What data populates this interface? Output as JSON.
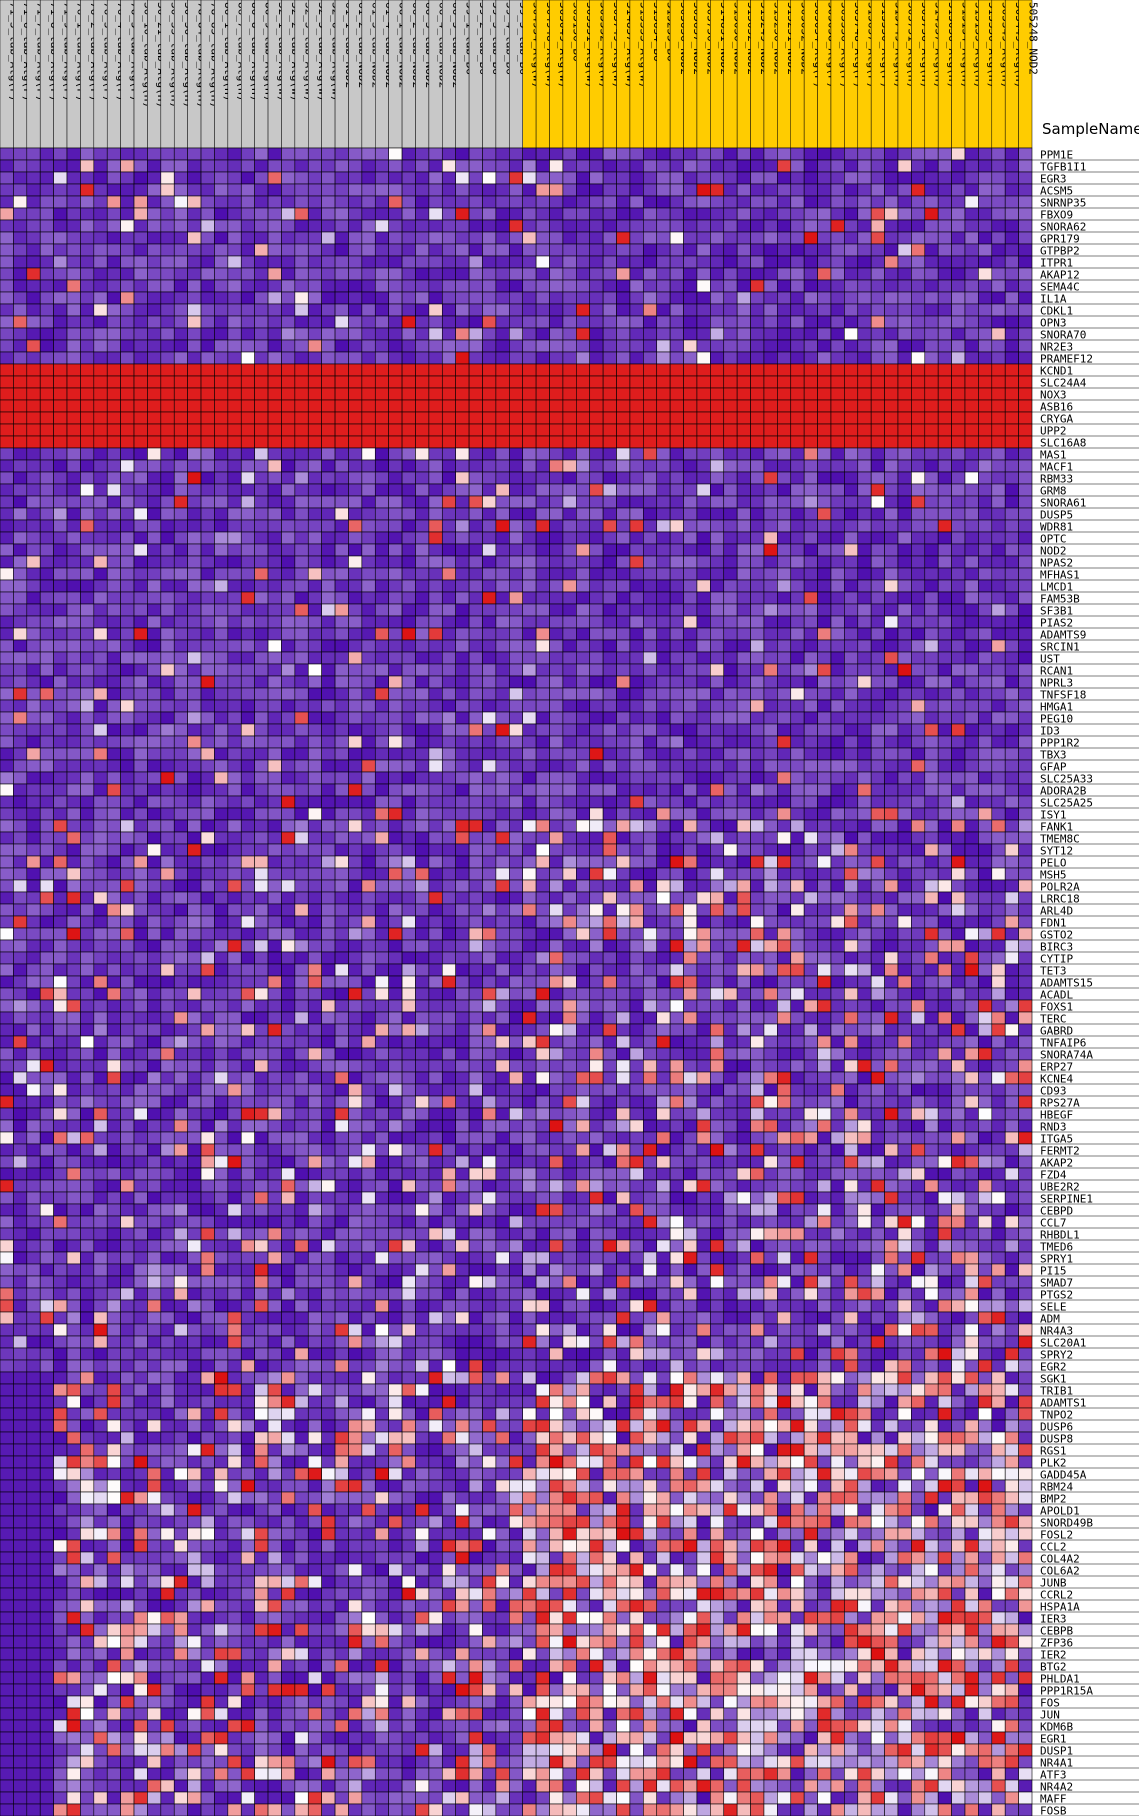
{
  "chart_data": {
    "type": "heatmap",
    "title": "SampleName",
    "palette": {
      "low": "#4400aa",
      "mid": "#ffffff",
      "high": "#dd1111",
      "group_a_header": "#c8c8c8",
      "group_b_header": "#ffcc00",
      "grid": "#000000"
    },
    "columns_group_a": [
      "71_3_lab_Atg(F)",
      "71_6_lab_Atg(F)",
      "71_7_lab_Atg(F)",
      "71_8_lab_Atg(F)",
      "71_9_lab_Atg(F)",
      "76_1_lab_Atg(F)",
      "76_2_lab_Atg(F)",
      "76_3_lab_Atg(F)",
      "76_4_lab_Atg(F)",
      "76_5_lab_Atg(F)",
      "30_10_lab_Atg(H)",
      "30_21_lab_Atg(H)",
      "30_33_lab_Atg(H)",
      "30_36_lab_Atg(H)",
      "78_84_lab_Atg(H)",
      "78_85_lab_Atg(H)",
      "86_1_lab_Atg(H)",
      "86_7_lab_Atg(H)",
      "86_8_lab_Atg(H)",
      "86_9_lab_Atg(H)",
      "32_1_lab_Atg(W)",
      "32_2_lab_Atg(W)",
      "32_3_lab_Atg(W)",
      "32_5_lab_Atg(W)",
      "32_6_lab_Atg(W)",
      "61_1_lab_NOD2",
      "61_2_lab_NOD2",
      "61_3_lab_NOD2",
      "61_4_lab_NOD2",
      "66_1_lab_NOD2",
      "66_2_lab_NOD2",
      "66_3_lab_NOD2",
      "66_4_lab_NOD2",
      "66_5_lab_NOD2",
      "59_1_lab_B6",
      "59_2_lab_B6",
      "59_3_lab_B6",
      "59_4_lab_B6",
      "59_5_lab_B6"
    ],
    "columns_group_b": [
      "504954_Atg(W)",
      "504948_Atg(W)",
      "505049_Atg(W)",
      "505150_B6",
      "505551_Atg(W)",
      "505552_Atg(W)",
      "505749_Atg(W)",
      "514857_Atg(W)",
      "515353_Atg(W)",
      "515654_B6",
      "515255_B6",
      "505656_NOD2",
      "505657_NOD2",
      "505750_NOD2",
      "514851_NOD2",
      "515050_NOD2",
      "515052_NOD2",
      "515249_NOD2",
      "515250_NOD2",
      "515251_NOD2",
      "505052_NOD2",
      "505054_Atg(F)",
      "505058_Atg(F)",
      "505556_Atg(F)",
      "505748_Atg(F)",
      "515657_Atg(F)",
      "515550_Atg(F)",
      "515749_Atg(H)",
      "505751_Atg(H)",
      "505756_Atg(H)",
      "514957_Atg(H)",
      "515056_Atg(H)",
      "515154_Atg(H)",
      "515155_Atg(H)",
      "515350_Atg(H)",
      "505349_Atg(H)",
      "505449_Atg(H)",
      "505248_NOD2"
    ],
    "rows": [
      "PPM1E",
      "TGFB1I1",
      "EGR3",
      "ACSM5",
      "SNRNP35",
      "FBXO9",
      "SNORA62",
      "GPR179",
      "GTPBP2",
      "ITPR1",
      "AKAP12",
      "SEMA4C",
      "IL1A",
      "CDKL1",
      "OPN3",
      "SNORA70",
      "NR2E3",
      "PRAMEF12",
      "KCND1",
      "SLC24A4",
      "NOX3",
      "ASB16",
      "CRYGA",
      "UPP2",
      "SLC16A8",
      "MAS1",
      "MACF1",
      "RBM33",
      "GRM8",
      "SNORA61",
      "DUSP5",
      "WDR81",
      "OPTC",
      "NOD2",
      "NPAS2",
      "MFHAS1",
      "LMCD1",
      "FAM53B",
      "SF3B1",
      "PIAS2",
      "ADAMTS9",
      "SRCIN1",
      "UST",
      "RCAN1",
      "NPRL3",
      "TNFSF18",
      "HMGA1",
      "PEG10",
      "ID3",
      "PPP1R2",
      "TBX3",
      "GFAP",
      "SLC25A33",
      "ADORA2B",
      "SLC25A25",
      "ISY1",
      "FANK1",
      "TMEM8C",
      "SYT12",
      "PELO",
      "MSH5",
      "POLR2A",
      "LRRC18",
      "ARL4D",
      "FDN1",
      "GSTO2",
      "BIRC3",
      "CYTIP",
      "TET3",
      "ADAMTS15",
      "ACADL",
      "FOXS1",
      "TERC",
      "GABRD",
      "TNFAIP6",
      "SNORA74A",
      "ERP27",
      "KCNE4",
      "CD93",
      "RPS27A",
      "HBEGF",
      "RND3",
      "ITGA5",
      "FERMT2",
      "AKAP2",
      "FZD4",
      "UBE2R2",
      "SERPINE1",
      "CEBPD",
      "CCL7",
      "RHBDL1",
      "TMED6",
      "SPRY1",
      "PI15",
      "SMAD7",
      "PTGS2",
      "SELE",
      "ADM",
      "NR4A3",
      "SLC20A1",
      "SPRY2",
      "EGR2",
      "SGK1",
      "TRIB1",
      "ADAMTS1",
      "TNPO2",
      "DUSP6",
      "DUSP8",
      "RGS1",
      "PLK2",
      "GADD45A",
      "RBM24",
      "BMP2",
      "APOLD1",
      "SNORD49B",
      "FOSL2",
      "CCL2",
      "COL4A2",
      "COL6A2",
      "JUNB",
      "CCRL2",
      "HSPA1A",
      "IER3",
      "CEBPB",
      "ZFP36",
      "IER2",
      "BTG2",
      "PHLDA1",
      "PPP1R15A",
      "FOS",
      "JUN",
      "KDM6B",
      "EGR1",
      "DUSP1",
      "NR4A1",
      "ATF3",
      "NR4A2",
      "MAFF",
      "FOSB"
    ],
    "value_range": [
      -1,
      1
    ],
    "constant_high_rows": [
      "KCND1",
      "SLC24A4",
      "NOX3",
      "ASB16",
      "CRYGA",
      "UPP2",
      "SLC16A8"
    ],
    "seed": 20240611
  }
}
